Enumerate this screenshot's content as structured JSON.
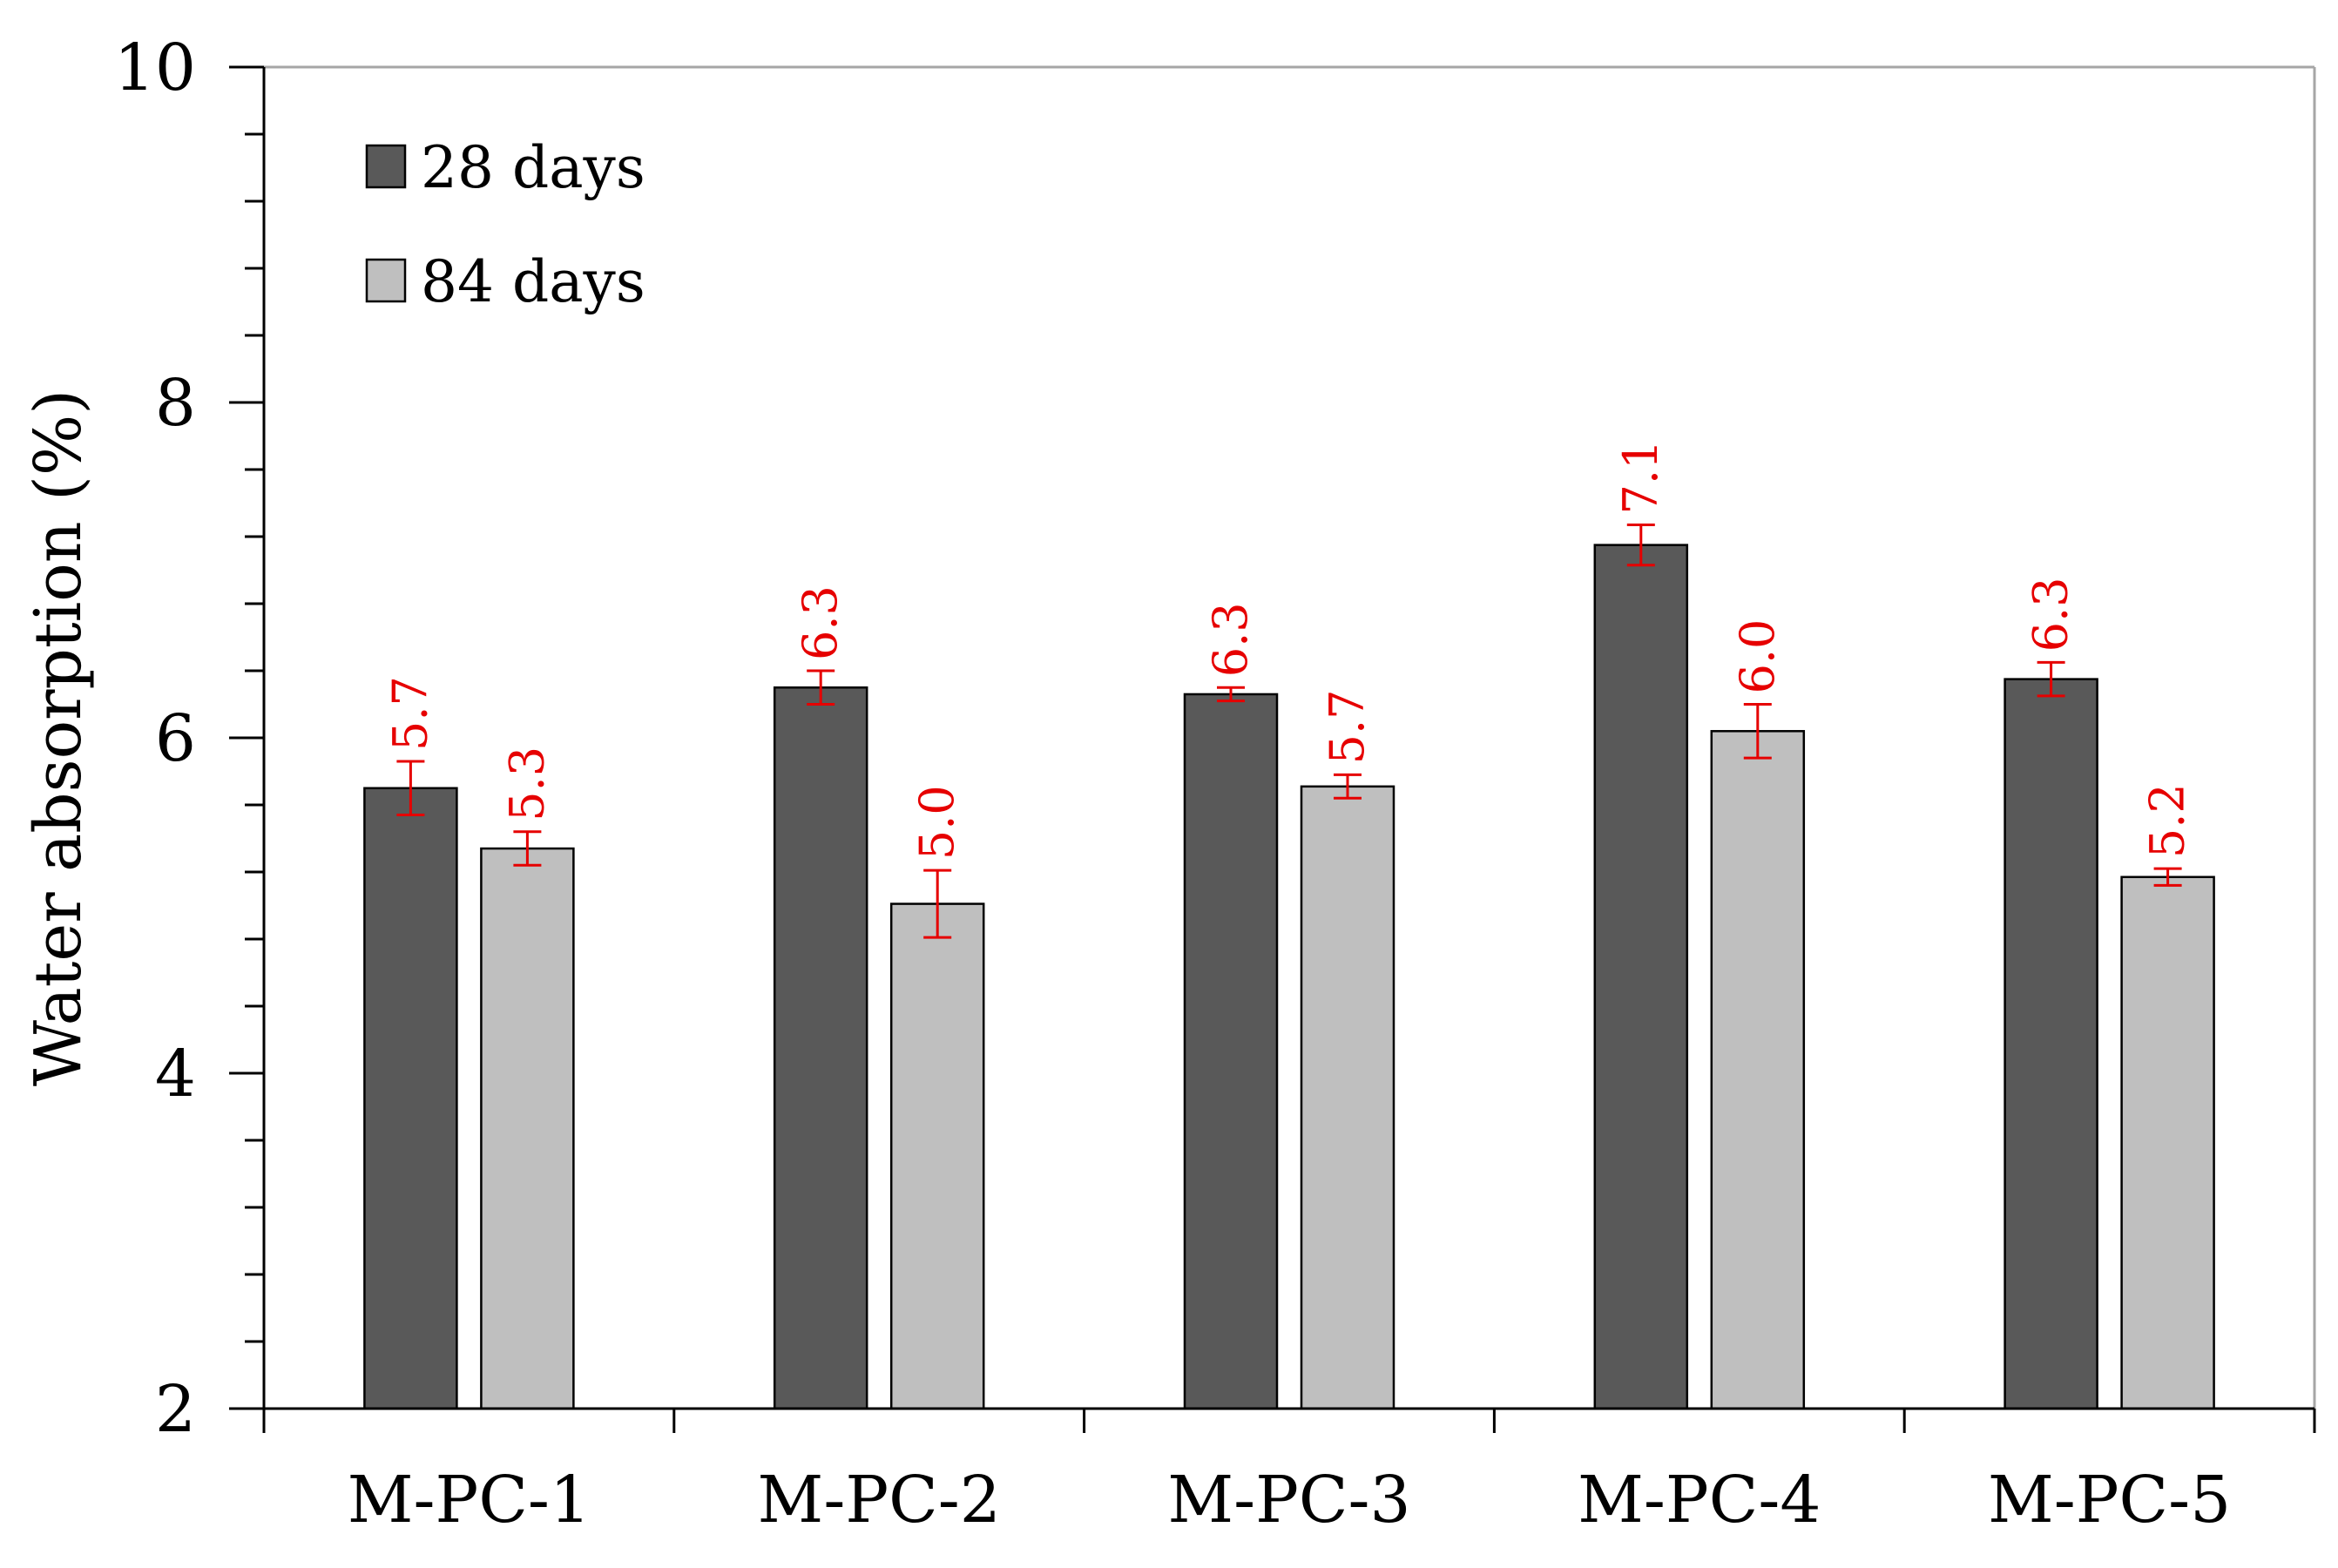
{
  "chart_data": {
    "type": "bar",
    "title": "",
    "xlabel": "",
    "ylabel": "Water absorption (%)",
    "ylim": [
      2,
      10
    ],
    "yticks": [
      2,
      4,
      6,
      8,
      10
    ],
    "minor_tick_step": 0.4,
    "categories": [
      "M-PC-1",
      "M-PC-2",
      "M-PC-3",
      "M-PC-4",
      "M-PC-5"
    ],
    "series": [
      {
        "name": "28 days",
        "color": "#595959",
        "values": [
          5.7,
          6.3,
          6.26,
          7.15,
          6.35
        ],
        "errors": [
          0.16,
          0.1,
          0.04,
          0.12,
          0.1
        ],
        "labels": [
          "5.7",
          "6.3",
          "6.3",
          "7.1",
          "6.3"
        ]
      },
      {
        "name": "84 days",
        "color": "#bfbfbf",
        "values": [
          5.34,
          5.01,
          5.71,
          6.04,
          5.17
        ],
        "errors": [
          0.1,
          0.2,
          0.07,
          0.16,
          0.05
        ],
        "labels": [
          "5.3",
          "5.0",
          "5.7",
          "6.0",
          "5.2"
        ]
      }
    ],
    "error_bar_color": "#e60000",
    "data_label_color": "#e60000",
    "legend_position": "top-left",
    "grid": false
  }
}
